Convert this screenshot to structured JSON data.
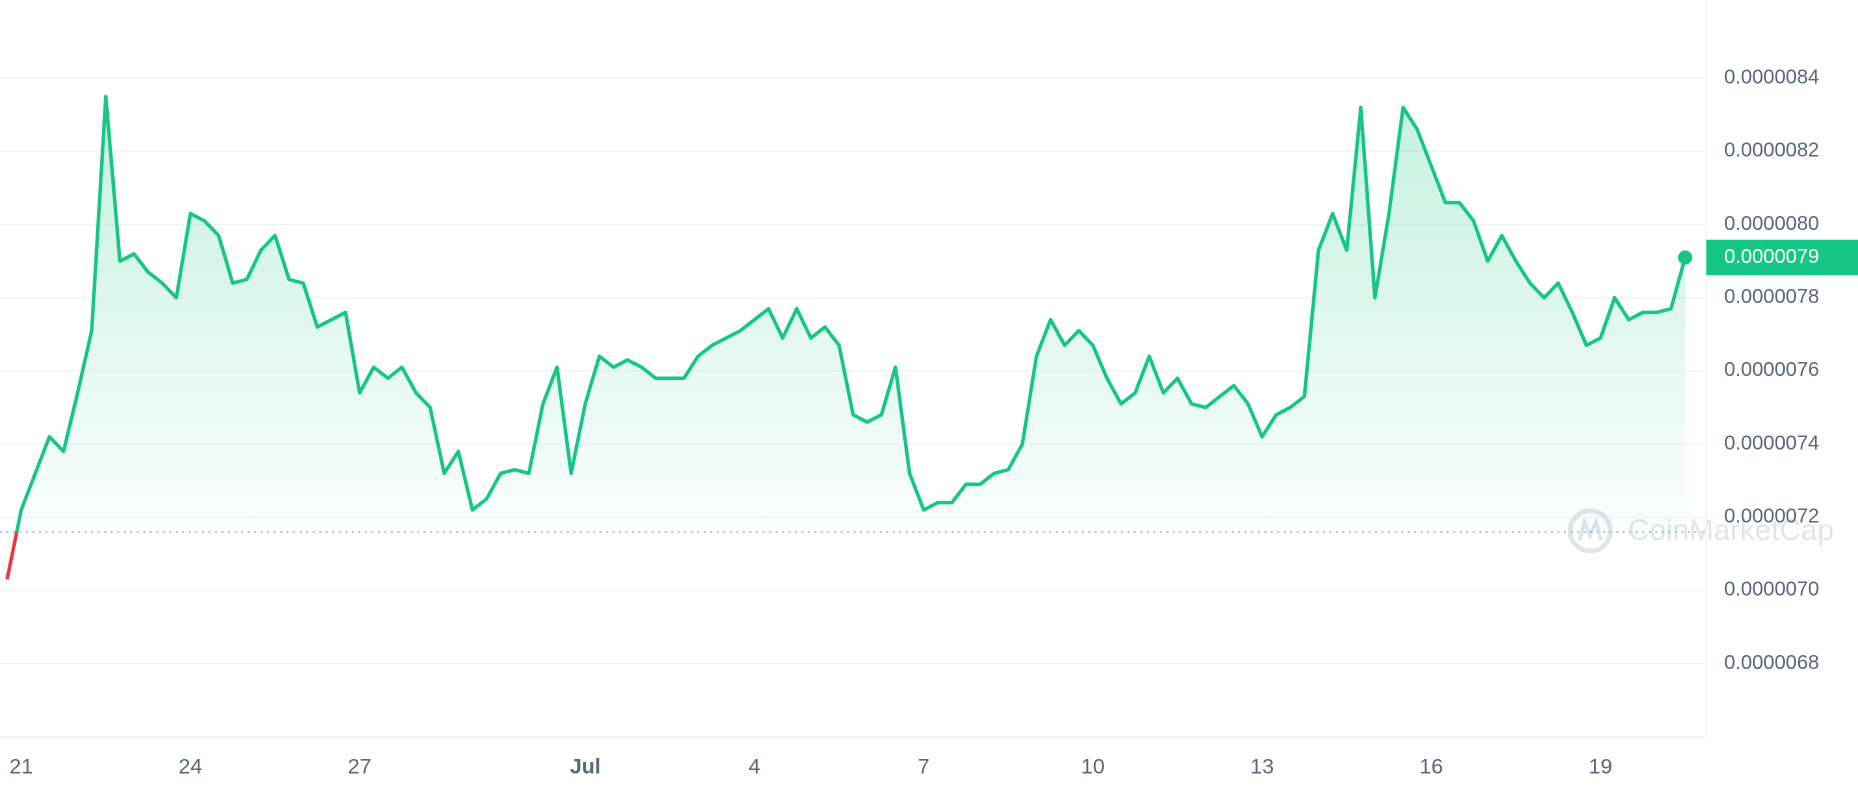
{
  "chart_data": {
    "type": "line",
    "categories": [
      null,
      "21",
      null,
      null,
      null,
      null,
      null,
      null,
      null,
      null,
      null,
      null,
      null,
      "24",
      null,
      null,
      null,
      null,
      null,
      null,
      null,
      null,
      null,
      null,
      null,
      "27",
      null,
      null,
      null,
      null,
      null,
      null,
      null,
      null,
      null,
      null,
      null,
      null,
      null,
      null,
      null,
      "Jul",
      null,
      null,
      null,
      null,
      null,
      null,
      null,
      null,
      null,
      null,
      null,
      "4",
      null,
      null,
      null,
      null,
      null,
      null,
      null,
      null,
      null,
      null,
      null,
      "7",
      null,
      null,
      null,
      null,
      null,
      null,
      null,
      null,
      null,
      null,
      null,
      "10",
      null,
      null,
      null,
      null,
      null,
      null,
      null,
      null,
      null,
      null,
      null,
      "13",
      null,
      null,
      null,
      null,
      null,
      null,
      null,
      null,
      null,
      null,
      null,
      "16",
      null,
      null,
      null,
      null,
      null,
      null,
      null,
      null,
      null,
      null,
      null,
      "19",
      null,
      null,
      null,
      null,
      null,
      null
    ],
    "values": [
      7.03e-06,
      7.22e-06,
      7.32e-06,
      7.42e-06,
      7.38e-06,
      7.54e-06,
      7.71e-06,
      8.35e-06,
      7.9e-06,
      7.92e-06,
      7.87e-06,
      7.84e-06,
      7.8e-06,
      8.03e-06,
      8.01e-06,
      7.97e-06,
      7.84e-06,
      7.85e-06,
      7.93e-06,
      7.97e-06,
      7.85e-06,
      7.84e-06,
      7.72e-06,
      7.74e-06,
      7.76e-06,
      7.54e-06,
      7.61e-06,
      7.58e-06,
      7.61e-06,
      7.54e-06,
      7.5e-06,
      7.32e-06,
      7.38e-06,
      7.22e-06,
      7.25e-06,
      7.32e-06,
      7.33e-06,
      7.32e-06,
      7.51e-06,
      7.61e-06,
      7.32e-06,
      7.51e-06,
      7.64e-06,
      7.61e-06,
      7.63e-06,
      7.61e-06,
      7.58e-06,
      7.58e-06,
      7.58e-06,
      7.64e-06,
      7.67e-06,
      7.69e-06,
      7.71e-06,
      7.74e-06,
      7.77e-06,
      7.69e-06,
      7.77e-06,
      7.69e-06,
      7.72e-06,
      7.67e-06,
      7.48e-06,
      7.46e-06,
      7.48e-06,
      7.61e-06,
      7.32e-06,
      7.22e-06,
      7.24e-06,
      7.24e-06,
      7.29e-06,
      7.29e-06,
      7.32e-06,
      7.33e-06,
      7.4e-06,
      7.64e-06,
      7.74e-06,
      7.67e-06,
      7.71e-06,
      7.67e-06,
      7.58e-06,
      7.51e-06,
      7.54e-06,
      7.64e-06,
      7.54e-06,
      7.58e-06,
      7.51e-06,
      7.5e-06,
      7.53e-06,
      7.56e-06,
      7.51e-06,
      7.42e-06,
      7.48e-06,
      7.5e-06,
      7.53e-06,
      7.93e-06,
      8.03e-06,
      7.93e-06,
      8.32e-06,
      7.8e-06,
      8.03e-06,
      8.32e-06,
      8.26e-06,
      8.16e-06,
      8.06e-06,
      8.06e-06,
      8.01e-06,
      7.9e-06,
      7.97e-06,
      7.9e-06,
      7.84e-06,
      7.8e-06,
      7.84e-06,
      7.76e-06,
      7.67e-06,
      7.69e-06,
      7.8e-06,
      7.74e-06,
      7.76e-06,
      7.76e-06,
      7.77e-06,
      7.91e-06
    ],
    "color": "#16c784",
    "below_color": "#ea3943",
    "baseline": 7.16e-06,
    "current_price_label": "0.0000079",
    "ylim": [
      6.6e-06,
      8.6e-06
    ],
    "yticks": [
      {
        "value": 6.8e-06,
        "label": "0.0000068"
      },
      {
        "value": 7e-06,
        "label": "0.0000070"
      },
      {
        "value": 7.2e-06,
        "label": "0.0000072"
      },
      {
        "value": 7.4e-06,
        "label": "0.0000074"
      },
      {
        "value": 7.6e-06,
        "label": "0.0000076"
      },
      {
        "value": 7.8e-06,
        "label": "0.0000078"
      },
      {
        "value": 8e-06,
        "label": "0.0000080"
      },
      {
        "value": 8.2e-06,
        "label": "0.0000082"
      },
      {
        "value": 8.4e-06,
        "label": "0.0000084"
      }
    ],
    "grid": true,
    "watermark": "CoinMarketCap"
  }
}
